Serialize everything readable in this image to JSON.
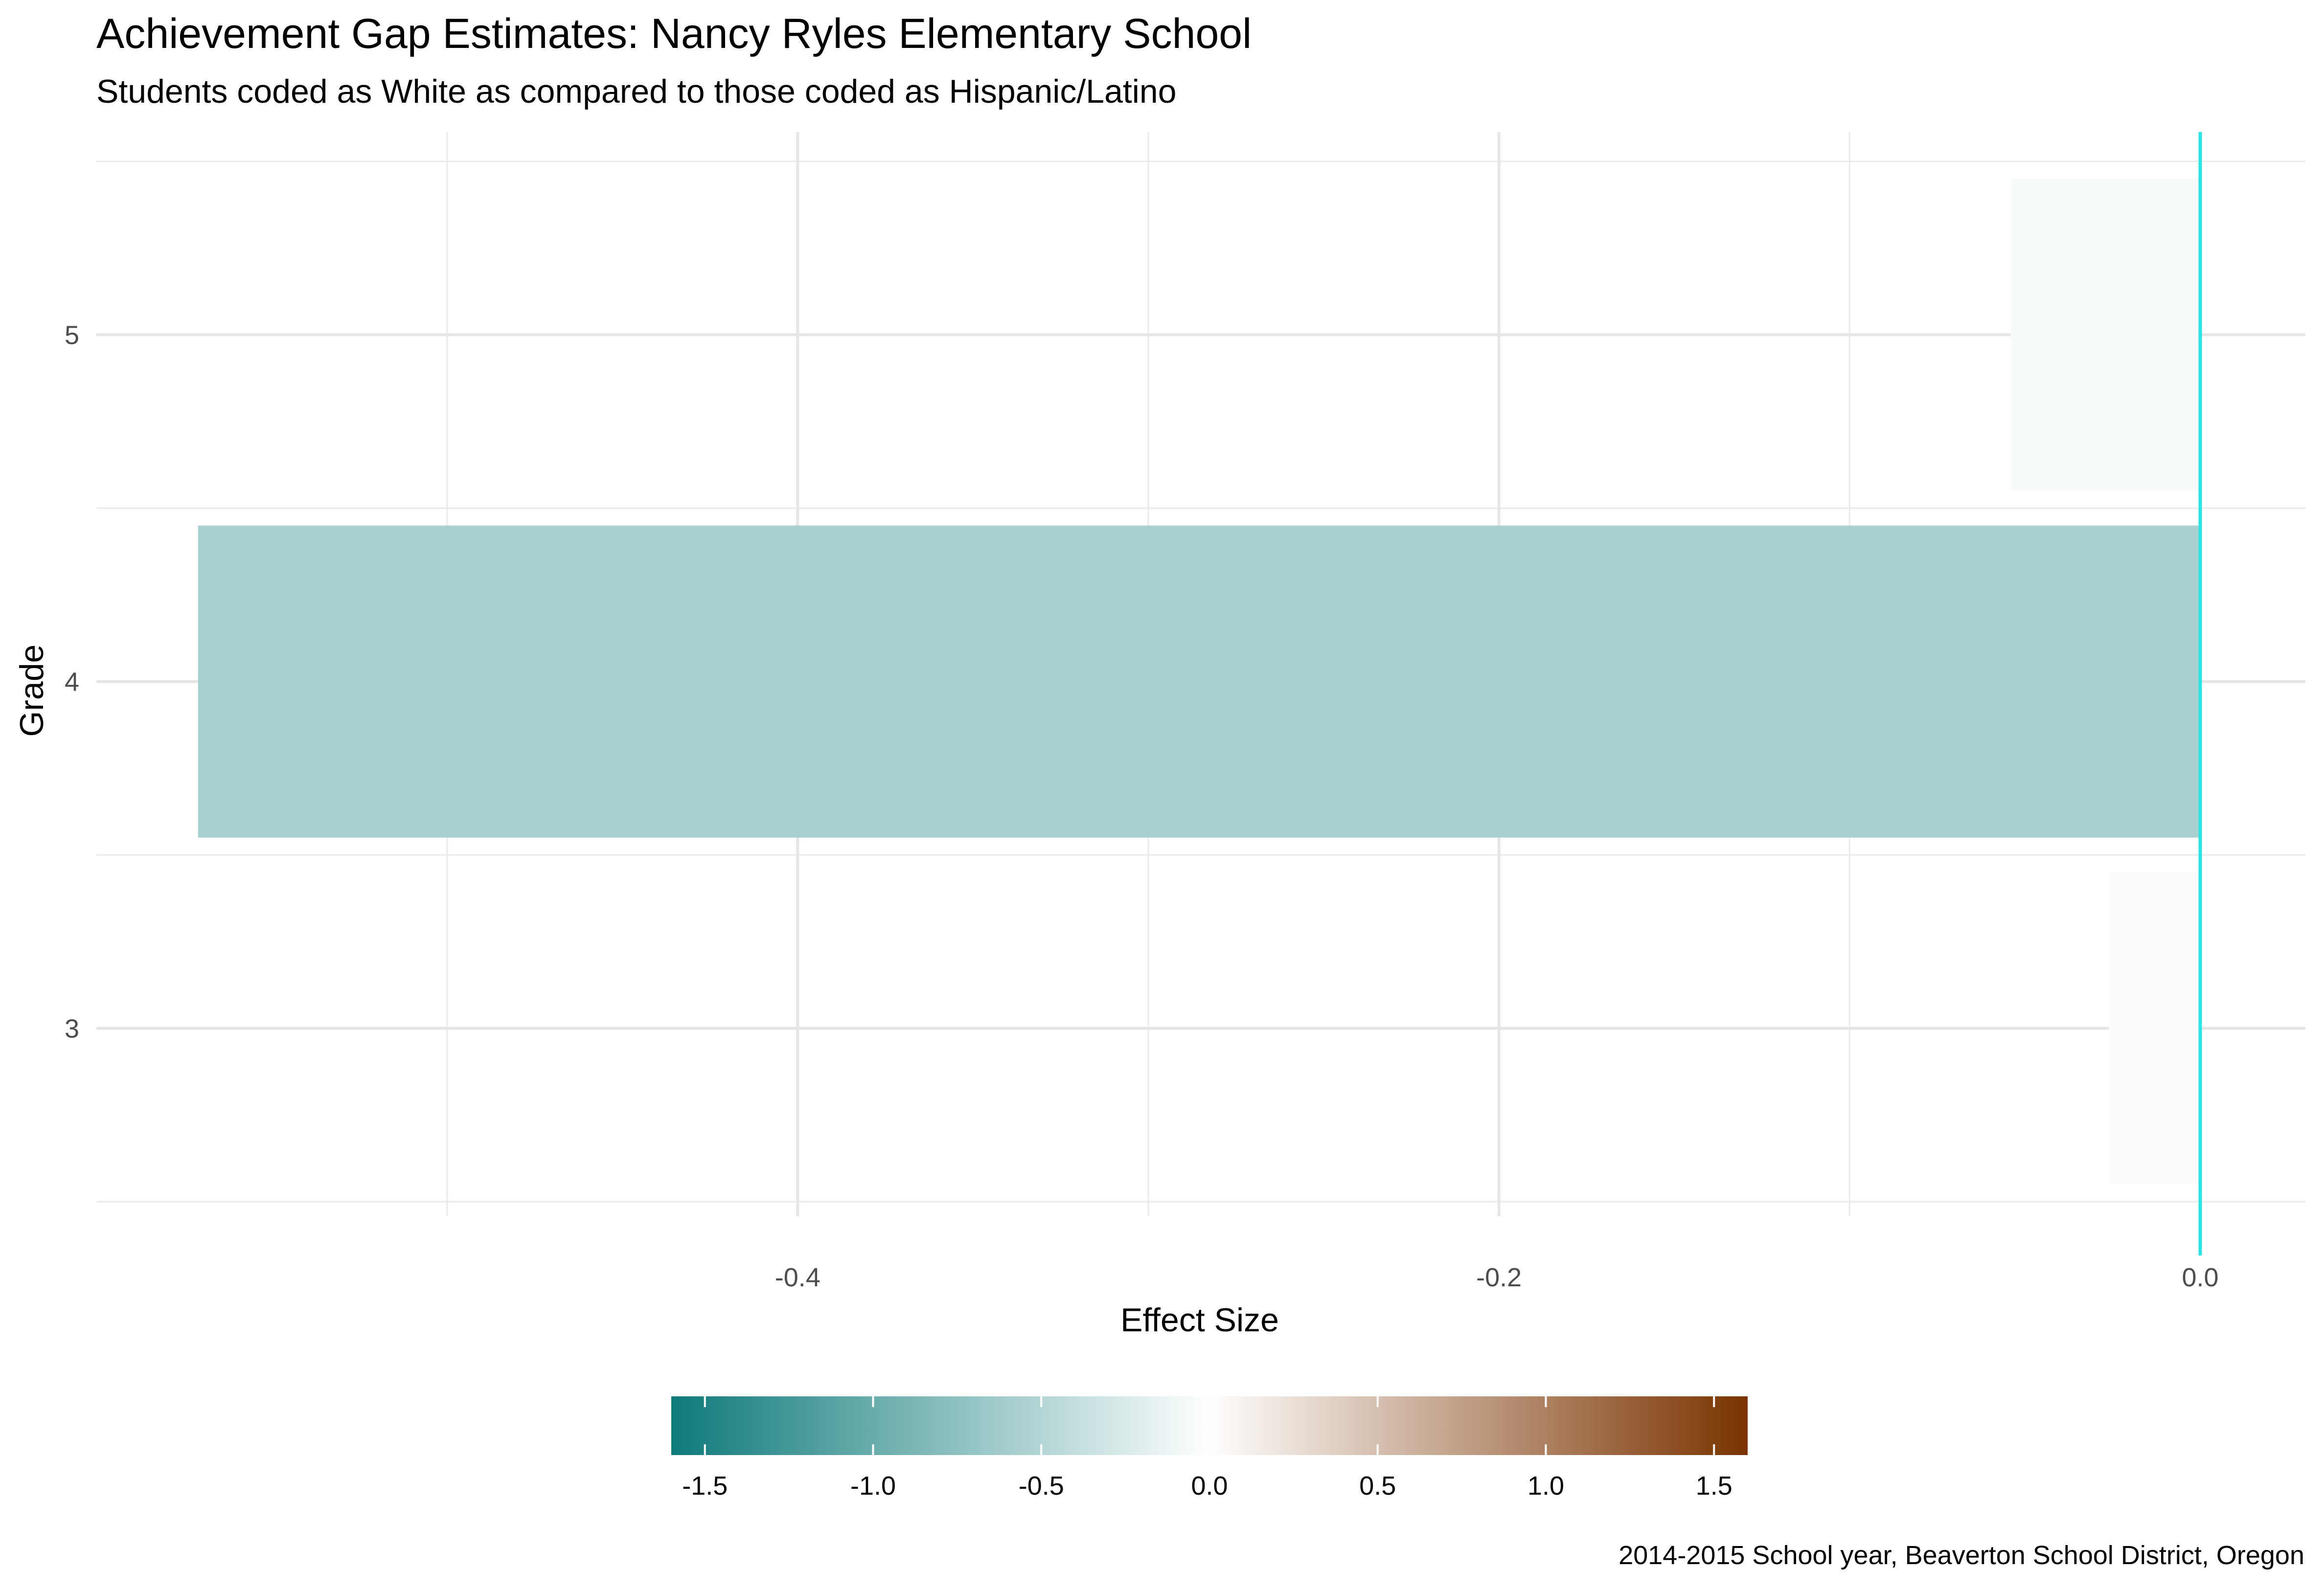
{
  "chart_data": {
    "type": "bar",
    "orientation": "horizontal",
    "title": "Achievement Gap Estimates: Nancy Ryles Elementary School",
    "subtitle": "Students coded as White as compared to those coded as Hispanic/Latino",
    "xlabel": "Effect Size",
    "ylabel": "Grade",
    "caption": "2014-2015 School year, Beaverton School District, Oregon",
    "categories": [
      "3",
      "4",
      "5"
    ],
    "values": [
      -0.026,
      -0.571,
      -0.054
    ],
    "xlim": [
      -0.6,
      0.03
    ],
    "x_ticks": [
      -0.4,
      -0.2,
      0.0
    ],
    "x_tick_labels": [
      "-0.4",
      "-0.2",
      "0.0"
    ],
    "reference_line": {
      "x": 0.0,
      "color": "#2ee3e3"
    },
    "grid": true,
    "legend": {
      "position": "bottom",
      "type": "colorbar",
      "range": [
        -1.6,
        1.6
      ],
      "ticks": [
        -1.5,
        -1.0,
        -0.5,
        0.0,
        0.5,
        1.0,
        1.5
      ],
      "tick_labels": [
        "-1.5",
        "-1.0",
        "-0.5",
        "0.0",
        "0.5",
        "1.0",
        "1.5"
      ],
      "colors": [
        "#0f7a7a",
        "#ffffff",
        "#7a3300"
      ]
    }
  }
}
